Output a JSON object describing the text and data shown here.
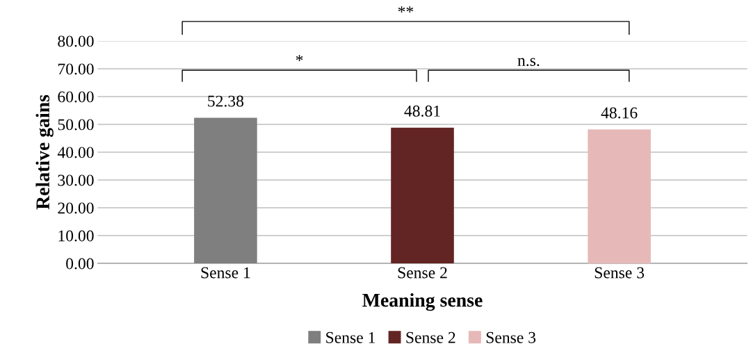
{
  "chart_data": {
    "type": "bar",
    "xlabel": "Meaning sense",
    "ylabel": "Relative gains",
    "categories": [
      "Sense 1",
      "Sense 2",
      "Sense 3"
    ],
    "series": [
      {
        "name": "Sense 1",
        "color": "#7f7f7f",
        "values": [
          52.38,
          null,
          null
        ]
      },
      {
        "name": "Sense 2",
        "color": "#632523",
        "values": [
          null,
          48.81,
          null
        ]
      },
      {
        "name": "Sense 3",
        "color": "#e6b9b8",
        "values": [
          null,
          null,
          48.16
        ]
      }
    ],
    "ylim": [
      0,
      80
    ],
    "yticks": [
      {
        "value": 0,
        "label": "0.00"
      },
      {
        "value": 10,
        "label": "10.00"
      },
      {
        "value": 20,
        "label": "20.00"
      },
      {
        "value": 30,
        "label": "30.00"
      },
      {
        "value": 40,
        "label": "40.00"
      },
      {
        "value": 50,
        "label": "50.00"
      },
      {
        "value": 60,
        "label": "60.00"
      },
      {
        "value": 70,
        "label": "70.00"
      },
      {
        "value": 80,
        "label": "80.00"
      }
    ],
    "grid": "y",
    "legend": "bottom",
    "data_labels": true,
    "annotations": [
      "**",
      "*",
      "n.s."
    ]
  }
}
